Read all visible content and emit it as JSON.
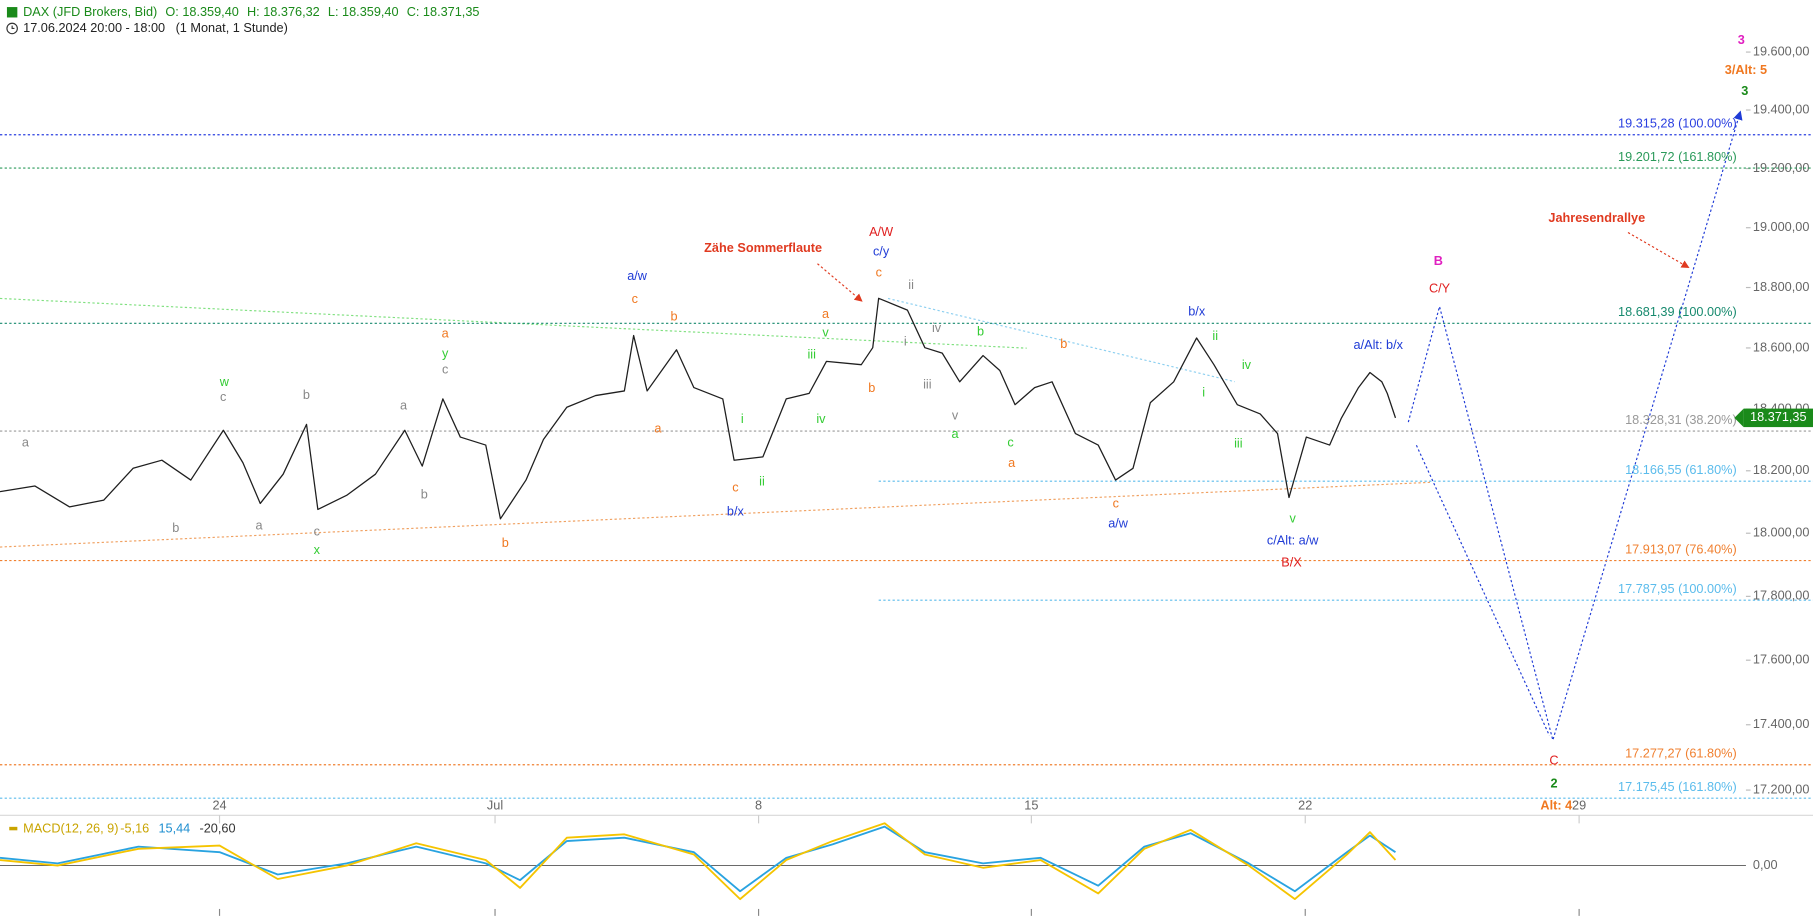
{
  "header": {
    "instrument": "DAX (JFD Brokers, Bid)",
    "open": "O: 18.359,40",
    "high": "H: 18.376,32",
    "low": "L: 18.359,40",
    "close": "C: 18.371,35",
    "period": "17.06.2024 20:00 - 18:00",
    "range": "(1 Monat, 1 Stunde)"
  },
  "chart_data": [
    {
      "type": "line",
      "log": true,
      "grid": false,
      "xlim": [
        0,
        32.13
      ],
      "ylim": [
        17141,
        19781
      ],
      "xticks": [
        {
          "value": 4.04,
          "label": "24"
        },
        {
          "value": 9.11,
          "label": "Jul"
        },
        {
          "value": 13.96,
          "label": "8"
        },
        {
          "value": 18.98,
          "label": "15"
        },
        {
          "value": 24.02,
          "label": "22"
        },
        {
          "value": 29.06,
          "label": "29"
        }
      ],
      "yticks": [
        {
          "value": 17200,
          "label": "17.200,00"
        },
        {
          "value": 17400,
          "label": "17.400,00"
        },
        {
          "value": 17600,
          "label": "17.600,00"
        },
        {
          "value": 17800,
          "label": "17.800,00"
        },
        {
          "value": 18000,
          "label": "18.000,00"
        },
        {
          "value": 18200,
          "label": "18.200,00"
        },
        {
          "value": 18400,
          "label": "18.400,00"
        },
        {
          "value": 18600,
          "label": "18.600,00"
        },
        {
          "value": 18800,
          "label": "18.800,00"
        },
        {
          "value": 19000,
          "label": "19.000,00"
        },
        {
          "value": 19200,
          "label": "19.200,00"
        },
        {
          "value": 19400,
          "label": "19.400,00"
        },
        {
          "value": 19600,
          "label": "19.600,00"
        }
      ],
      "series": [
        {
          "color": "#1f1f1f",
          "x": [
            0,
            0.64,
            1.28,
            1.91,
            2.45,
            2.98,
            3.51,
            4.11,
            4.47,
            4.79,
            5.21,
            5.64,
            5.85,
            6.38,
            6.91,
            7.45,
            7.77,
            8.15,
            8.47,
            8.94,
            9.21,
            9.68,
            10,
            10.43,
            10.96,
            11.49,
            11.66,
            11.91,
            12.45,
            12.77,
            13.3,
            13.51,
            14.04,
            14.47,
            14.89,
            15.21,
            15.85,
            16.06,
            16.17,
            16.7,
            17.02,
            17.34,
            17.66,
            18.09,
            18.4,
            18.68,
            19.04,
            19.36,
            19.79,
            20.21,
            20.53,
            20.85,
            21.17,
            21.6,
            22.02,
            22.34,
            22.77,
            23.19,
            23.51,
            23.72,
            24.04,
            24.47,
            24.68,
            25,
            25.21,
            25.43,
            25.53,
            25.68
          ],
          "values": [
            18133,
            18151,
            18084,
            18106,
            18208,
            18234,
            18170,
            18331,
            18226,
            18095,
            18189,
            18350,
            18076,
            18121,
            18189,
            18331,
            18215,
            18433,
            18309,
            18283,
            18046,
            18170,
            18301,
            18406,
            18444,
            18459,
            18641,
            18459,
            18594,
            18470,
            18433,
            18234,
            18245,
            18433,
            18451,
            18556,
            18545,
            18601,
            18764,
            18725,
            18601,
            18583,
            18489,
            18575,
            18526,
            18414,
            18470,
            18489,
            18320,
            18283,
            18170,
            18208,
            18421,
            18489,
            18633,
            18545,
            18414,
            18384,
            18320,
            18114,
            18309,
            18283,
            18369,
            18470,
            18519,
            18489,
            18451,
            18371.35
          ]
        }
      ],
      "last_price": {
        "value": 18371.35,
        "label": "18.371,35",
        "color": "#1a8a1a"
      },
      "levels": [
        {
          "value": 19315.28,
          "label": "19.315,28 (100.00%)",
          "color": "#2a3fe0"
        },
        {
          "value": 19201.72,
          "label": "19.201,72 (161.80%)",
          "color": "#2a9a5a"
        },
        {
          "value": 18681.39,
          "label": "18.681,39 (100.00%)",
          "color": "#178a6e"
        },
        {
          "value": 18328.31,
          "label": "18.328,31 (38.20%)",
          "color": "#999999"
        },
        {
          "value": 18166.55,
          "label": "18.166,55 (61.80%)",
          "color": "#5bbcec",
          "x_start": 16.17
        },
        {
          "value": 17913.07,
          "label": "17.913,07 (76.40%)",
          "color": "#f08030"
        },
        {
          "value": 17787.95,
          "label": "17.787,95 (100.00%)",
          "color": "#5bbcec",
          "x_start": 16.17
        },
        {
          "value": 17277.27,
          "label": "17.277,27 (61.80%)",
          "color": "#f08030"
        },
        {
          "value": 17175.45,
          "label": "17.175,45 (161.80%)",
          "color": "#5bbcec"
        }
      ],
      "annotations": [
        {
          "text": "a",
          "color": "#888888"
        },
        {
          "text": "b",
          "color": "#888888"
        },
        {
          "text": "w",
          "color": "#33cc33"
        },
        {
          "text": "c",
          "color": "#888888"
        },
        {
          "text": "b",
          "color": "#888888"
        },
        {
          "text": "a",
          "color": "#888888"
        },
        {
          "text": "c",
          "color": "#888888"
        },
        {
          "text": "x",
          "color": "#33cc33"
        },
        {
          "text": "b",
          "color": "#888888"
        },
        {
          "text": "a",
          "color": "#888888"
        },
        {
          "text": "a",
          "color": "#f07820"
        },
        {
          "text": "y",
          "color": "#33cc33"
        },
        {
          "text": "c",
          "color": "#888888"
        },
        {
          "text": "b",
          "color": "#f07820"
        },
        {
          "text": "a/w",
          "color": "#1f3bd6"
        },
        {
          "text": "c",
          "color": "#f07820"
        },
        {
          "text": "b",
          "color": "#f07820"
        },
        {
          "text": "a",
          "color": "#f07820"
        },
        {
          "text": "c",
          "color": "#f07820"
        },
        {
          "text": "b/x",
          "color": "#1f3bd6"
        },
        {
          "text": "i",
          "color": "#33cc33"
        },
        {
          "text": "ii",
          "color": "#33cc33"
        },
        {
          "text": "iii",
          "color": "#33cc33"
        },
        {
          "text": "iv",
          "color": "#33cc33"
        },
        {
          "text": "a",
          "color": "#f07820"
        },
        {
          "text": "v",
          "color": "#33cc33"
        },
        {
          "text": "b",
          "color": "#f07820"
        },
        {
          "text": "Zähe Sommerflaute",
          "color": "#e03a20"
        },
        {
          "text": "A/W",
          "color": "#e02020"
        },
        {
          "text": "c/y",
          "color": "#1f3bd6"
        },
        {
          "text": "c",
          "color": "#f07820"
        },
        {
          "text": "ii",
          "color": "#888888"
        },
        {
          "text": "i",
          "color": "#888888"
        },
        {
          "text": "iv",
          "color": "#888888"
        },
        {
          "text": "iii",
          "color": "#888888"
        },
        {
          "text": "v",
          "color": "#888888"
        },
        {
          "text": "a",
          "color": "#33cc33"
        },
        {
          "text": "b",
          "color": "#33cc33"
        },
        {
          "text": "c",
          "color": "#33cc33"
        },
        {
          "text": "a",
          "color": "#f07820"
        },
        {
          "text": "b",
          "color": "#f07820"
        },
        {
          "text": "c",
          "color": "#f07820"
        },
        {
          "text": "a/w",
          "color": "#1f3bd6"
        },
        {
          "text": "b/x",
          "color": "#1f3bd6"
        },
        {
          "text": "ii",
          "color": "#33cc33"
        },
        {
          "text": "i",
          "color": "#33cc33"
        },
        {
          "text": "iv",
          "color": "#33cc33"
        },
        {
          "text": "iii",
          "color": "#33cc33"
        },
        {
          "text": "v",
          "color": "#33cc33"
        },
        {
          "text": "c/Alt: a/w",
          "color": "#1f3bd6"
        },
        {
          "text": "B/X",
          "color": "#e02020"
        },
        {
          "text": "a/Alt: b/x",
          "color": "#1f3bd6"
        },
        {
          "text": "B",
          "color": "#e020c0"
        },
        {
          "text": "C/Y",
          "color": "#e02020"
        },
        {
          "text": "Jahresendrallye",
          "color": "#e03a20"
        },
        {
          "text": "3",
          "color": "#e020c0"
        },
        {
          "text": "3/Alt: 5",
          "color": "#f07820"
        },
        {
          "text": "3",
          "color": "#1a8a1a"
        },
        {
          "text": "C",
          "color": "#e02020"
        },
        {
          "text": "2",
          "color": "#1a8a1a"
        },
        {
          "text": "Alt: 4",
          "color": "#f07820"
        }
      ]
    },
    {
      "type": "line",
      "title": "MACD(12, 26, 9)",
      "title_color": "#c9a400",
      "readouts": [
        {
          "text": "-5,16",
          "color": "#c9a400"
        },
        {
          "text": "15,44",
          "color": "#1f8fd0"
        },
        {
          "text": "-20,60",
          "color": "#333333"
        }
      ],
      "xlim": [
        0,
        32.13
      ],
      "ylim": [
        -43,
        42
      ],
      "yticks": [
        {
          "value": 0,
          "label": "0,00"
        }
      ],
      "x": [
        0,
        1.06,
        2.55,
        4.04,
        5.11,
        6.38,
        7.66,
        8.94,
        9.57,
        10.43,
        11.49,
        12.77,
        13.62,
        14.47,
        15.32,
        16.28,
        17.02,
        18.09,
        19.15,
        20.21,
        21.06,
        21.91,
        22.98,
        23.83,
        24.79,
        25.21,
        25.68
      ],
      "series": [
        {
          "color": "#29a3e0",
          "values": [
            7,
            2,
            17,
            12,
            -8,
            2,
            17,
            2,
            -13,
            22,
            25,
            12,
            -23,
            7,
            19,
            35,
            12,
            2,
            7,
            -18,
            17,
            29,
            2,
            -23,
            12,
            27,
            12
          ]
        },
        {
          "color": "#f5c400",
          "values": [
            5,
            0,
            15,
            18,
            -12,
            0,
            20,
            5,
            -20,
            25,
            28,
            10,
            -30,
            5,
            22,
            38,
            10,
            -2,
            5,
            -25,
            15,
            32,
            0,
            -30,
            10,
            30,
            5
          ]
        }
      ]
    }
  ]
}
